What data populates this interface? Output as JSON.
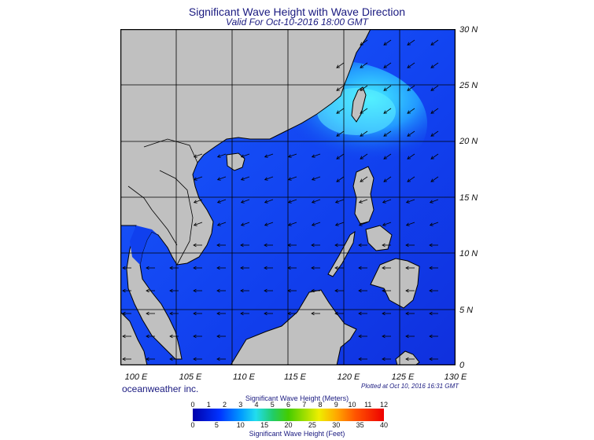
{
  "title": "Significant Wave Height with Wave Direction",
  "subtitle": "Valid For Oct-10-2016 18:00 GMT",
  "lat_labels": [
    "30 N",
    "25 N",
    "20 N",
    "15 N",
    "10 N",
    "5 N",
    "0"
  ],
  "lon_labels": [
    "100 E",
    "105 E",
    "110 E",
    "115 E",
    "120 E",
    "125 E",
    "130 E"
  ],
  "brand": "oceanweather inc.",
  "plotted": "Plotted at Oct 10, 2016 16:31 GMT",
  "colorbar": {
    "title_top": "Significant Wave Height (Meters)",
    "title_bottom": "Significant Wave Height (Feet)",
    "meters": [
      "0",
      "1",
      "2",
      "3",
      "4",
      "5",
      "6",
      "7",
      "8",
      "9",
      "10",
      "11",
      "12"
    ],
    "feet": [
      "0",
      "5",
      "10",
      "15",
      "20",
      "25",
      "30",
      "35",
      "40"
    ]
  },
  "colors": {
    "land": "#c0c0c0",
    "ocean_low": "#1133ee",
    "ocean_high": "#33ccee",
    "border": "#000000"
  }
}
